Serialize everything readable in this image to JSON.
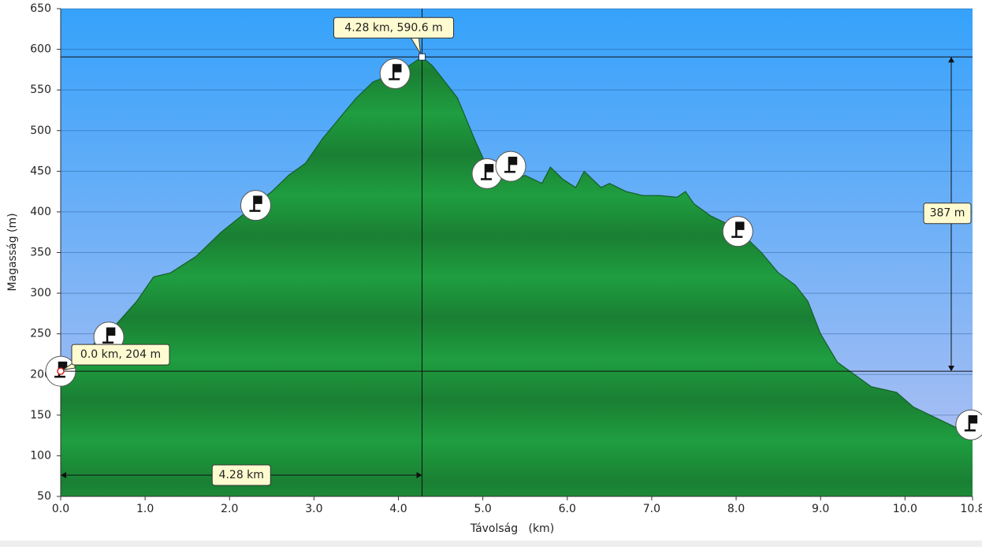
{
  "chart_data": {
    "type": "area",
    "x_label": "Távolság   (km)",
    "y_label": "Magasság (m)",
    "x": [
      0,
      0.3,
      0.6,
      0.9,
      1.1,
      1.3,
      1.6,
      1.9,
      2.2,
      2.5,
      2.7,
      2.9,
      3.1,
      3.3,
      3.5,
      3.7,
      3.9,
      4.1,
      4.28,
      4.4,
      4.5,
      4.7,
      4.9,
      5.05,
      5.2,
      5.4,
      5.5,
      5.7,
      5.8,
      5.95,
      6.1,
      6.2,
      6.3,
      6.4,
      6.5,
      6.7,
      6.9,
      7.1,
      7.3,
      7.4,
      7.5,
      7.7,
      7.9,
      8.1,
      8.3,
      8.5,
      8.7,
      8.85,
      9.0,
      9.2,
      9.4,
      9.6,
      9.9,
      10.1,
      10.4,
      10.6,
      10.8
    ],
    "values": [
      204,
      230,
      255,
      290,
      320,
      325,
      345,
      375,
      400,
      425,
      445,
      460,
      490,
      515,
      540,
      560,
      568,
      578,
      590.6,
      580,
      567,
      540,
      490,
      455,
      445,
      440,
      445,
      435,
      455,
      440,
      430,
      450,
      440,
      430,
      435,
      425,
      420,
      420,
      418,
      425,
      410,
      395,
      385,
      370,
      350,
      325,
      310,
      290,
      250,
      215,
      200,
      185,
      178,
      160,
      145,
      135,
      128
    ],
    "waypoints": {
      "x": [
        0,
        0.57,
        2.31,
        3.96,
        5.05,
        5.33,
        8.02,
        10.78
      ],
      "y": [
        204,
        246,
        408,
        570,
        447,
        456,
        376,
        138
      ]
    },
    "cursor": {
      "x": 4.28,
      "y": 590.6,
      "label": "4.28 km, 590.6 m"
    },
    "start": {
      "x": 0,
      "y": 204,
      "label": "0.0 km, 204 m"
    },
    "height_difference": {
      "value": 387,
      "label": "387 m"
    },
    "distance": {
      "value": 4.28,
      "label": "4.28 km"
    },
    "xlim": [
      0,
      10.8
    ],
    "ylim": [
      50,
      650
    ],
    "xticks": [
      {
        "value": 0,
        "label": "0.0"
      },
      {
        "value": 1,
        "label": "1.0"
      },
      {
        "value": 2,
        "label": "2.0"
      },
      {
        "value": 3,
        "label": "3.0"
      },
      {
        "value": 4,
        "label": "4.0"
      },
      {
        "value": 5,
        "label": "5.0"
      },
      {
        "value": 6,
        "label": "6.0"
      },
      {
        "value": 7,
        "label": "7.0"
      },
      {
        "value": 8,
        "label": "8.0"
      },
      {
        "value": 9,
        "label": "9.0"
      },
      {
        "value": 10,
        "label": "10.0"
      },
      {
        "value": 10.8,
        "label": "10.8"
      }
    ],
    "yticks": [
      50,
      100,
      150,
      200,
      250,
      300,
      350,
      400,
      450,
      500,
      550,
      600,
      650
    ],
    "grid": true
  }
}
